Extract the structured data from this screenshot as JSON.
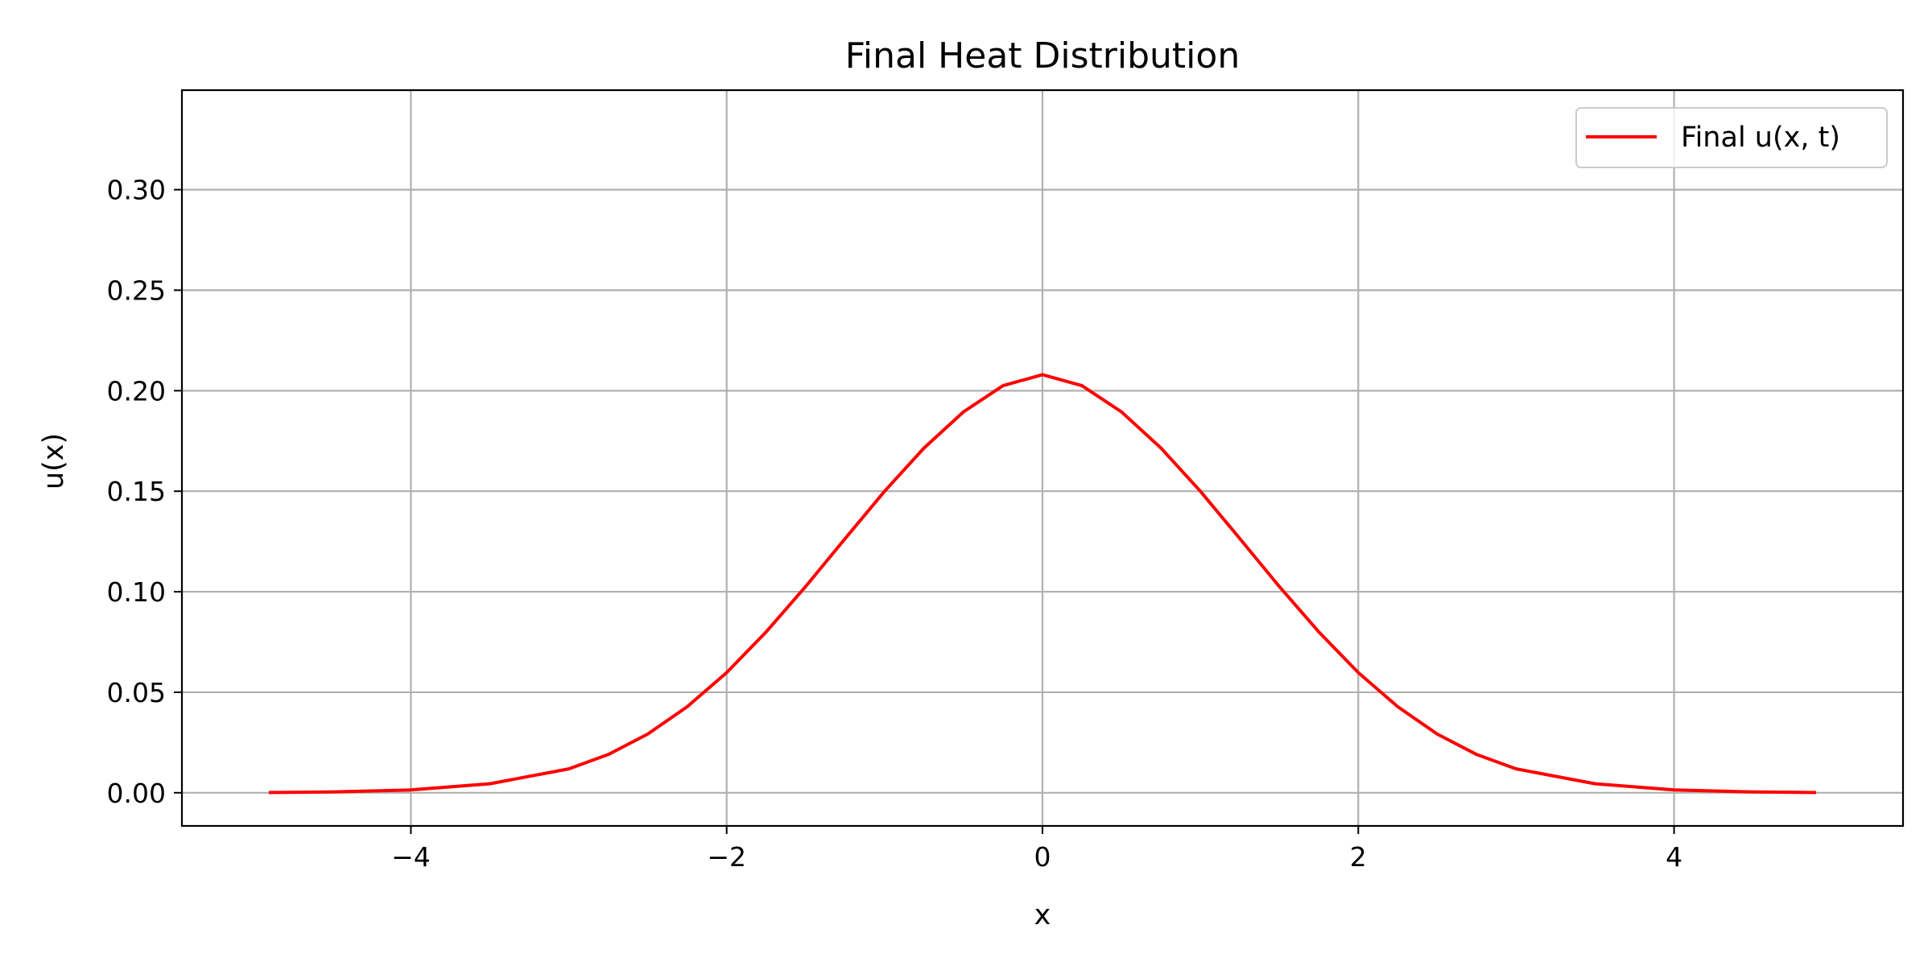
{
  "chart_data": {
    "type": "line",
    "title": "Final Heat Distribution",
    "xlabel": "x",
    "ylabel": "u(x)",
    "xlim": [
      -5.45,
      5.45
    ],
    "ylim": [
      -0.0165,
      0.3495
    ],
    "x_ticks": [
      -4,
      -2,
      0,
      2,
      4
    ],
    "x_tick_labels": [
      "−4",
      "−2",
      "0",
      "2",
      "4"
    ],
    "y_ticks": [
      0.0,
      0.05,
      0.1,
      0.15,
      0.2,
      0.25,
      0.3
    ],
    "y_tick_labels": [
      "0.00",
      "0.05",
      "0.10",
      "0.15",
      "0.20",
      "0.25",
      "0.30"
    ],
    "grid": true,
    "legend_position": "top-right",
    "series": [
      {
        "name": "Final u(x, t)",
        "color": "#ff0000",
        "x": [
          -4.9,
          -4.5,
          -4.0,
          -3.5,
          -3.0,
          -2.75,
          -2.5,
          -2.25,
          -2.0,
          -1.75,
          -1.5,
          -1.25,
          -1.0,
          -0.75,
          -0.5,
          -0.25,
          0.0,
          0.25,
          0.5,
          0.75,
          1.0,
          1.25,
          1.5,
          1.75,
          2.0,
          2.25,
          2.5,
          2.75,
          3.0,
          3.5,
          4.0,
          4.5,
          4.9
        ],
        "y": [
          0.0001,
          0.0004,
          0.0014,
          0.0045,
          0.0119,
          0.019,
          0.0292,
          0.0428,
          0.0598,
          0.08,
          0.1026,
          0.1264,
          0.15,
          0.1715,
          0.1895,
          0.2025,
          0.208,
          0.2025,
          0.1895,
          0.1715,
          0.15,
          0.1264,
          0.1026,
          0.08,
          0.0598,
          0.0428,
          0.0292,
          0.019,
          0.0119,
          0.0045,
          0.0014,
          0.0004,
          0.0001
        ]
      }
    ]
  }
}
